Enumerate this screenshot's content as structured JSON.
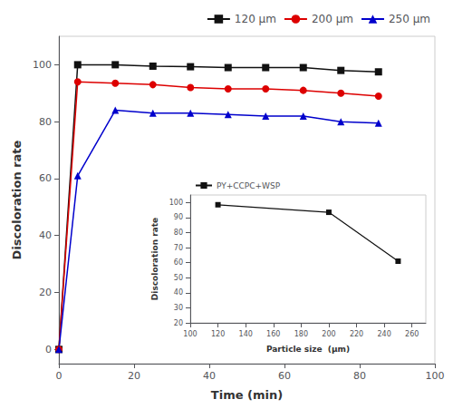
{
  "chart_data": [
    {
      "type": "line",
      "xlabel": "Time (min)",
      "ylabel": "Discoloration rate",
      "x": [
        0,
        5,
        15,
        25,
        35,
        45,
        55,
        65,
        75,
        85
      ],
      "series": [
        {
          "name": "120 μm",
          "color": "#111111",
          "marker": "square",
          "values": [
            0,
            100,
            100,
            99.5,
            99.3,
            99,
            99,
            99,
            98,
            97.5
          ]
        },
        {
          "name": "200 μm",
          "color": "#dd0000",
          "marker": "circle",
          "values": [
            0,
            94,
            93.5,
            93,
            92,
            91.5,
            91.5,
            91,
            90,
            89
          ]
        },
        {
          "name": "250 μm",
          "color": "#0000cc",
          "marker": "triangle",
          "values": [
            0,
            61,
            84,
            83,
            83,
            82.5,
            82,
            82,
            80,
            79.5
          ]
        }
      ],
      "xlim": [
        0,
        100
      ],
      "ylim": [
        -5,
        110
      ],
      "xticks": [
        0,
        20,
        40,
        60,
        80,
        100
      ],
      "yticks": [
        0,
        20,
        40,
        60,
        80,
        100
      ],
      "grid": false,
      "legend": "upper right"
    },
    {
      "type": "line",
      "xlabel": "Particle size  (μm)",
      "ylabel": "Discoloration rate",
      "x": [
        120,
        200,
        250
      ],
      "series": [
        {
          "name": "PY+CCPC+WSP",
          "color": "#111111",
          "marker": "square",
          "values": [
            98.5,
            93.5,
            61
          ]
        }
      ],
      "xlim": [
        100,
        270
      ],
      "ylim": [
        20,
        105
      ],
      "xticks": [
        100,
        120,
        140,
        160,
        180,
        200,
        220,
        240,
        260
      ],
      "yticks": [
        20,
        30,
        40,
        50,
        60,
        70,
        80,
        90,
        100
      ],
      "grid": false,
      "legend": "upper left"
    }
  ]
}
